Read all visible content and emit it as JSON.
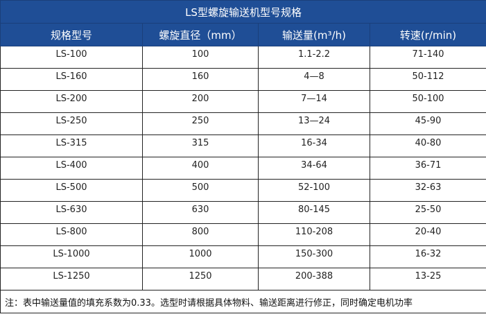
{
  "title": "LS型螺旋输送机型号规格",
  "headers": [
    "规格型号",
    "螺旋直径（mm）",
    "输送量(m³/h)",
    "转速(r/min)"
  ],
  "rows": [
    [
      "LS-100",
      "100",
      "1.1-2.2",
      "71-140"
    ],
    [
      "LS-160",
      "160",
      "4—8",
      "50-112"
    ],
    [
      "LS-200",
      "200",
      "7—14",
      "50-100"
    ],
    [
      "LS-250",
      "250",
      "13—24",
      "45-90"
    ],
    [
      "LS-315",
      "315",
      "16-34",
      "40-80"
    ],
    [
      "LS-400",
      "400",
      "34-64",
      "36-71"
    ],
    [
      "LS-500",
      "500",
      "52-100",
      "32-63"
    ],
    [
      "LS-630",
      "630",
      "80-145",
      "25-50"
    ],
    [
      "LS-800",
      "800",
      "110-208",
      "20-40"
    ],
    [
      "LS-1000",
      "1000",
      "150-300",
      "16-32"
    ],
    [
      "LS-1250",
      "1250",
      "200-388",
      "13-25"
    ]
  ],
  "note": "注：表中输送量值的填充系数为0.33。选型时请根据具体物料、输送距离进行修正，同时确定电机功率",
  "colors": {
    "header_bg": "#1f4e96",
    "header_text": "#ffffff"
  }
}
